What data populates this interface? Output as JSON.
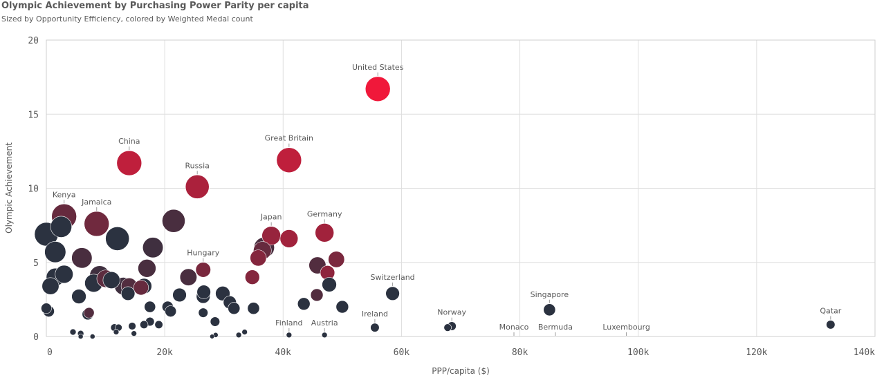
{
  "chart_data": {
    "type": "scatter",
    "title": "Olympic Achievement by Purchasing Power Parity per capita",
    "subtitle": "Sized by Opportunity Efficiency, colored by Weighted Medal count",
    "xlabel": "PPP/capita ($)",
    "ylabel": "Olympic Achievement",
    "xlim": [
      0,
      140000
    ],
    "ylim": [
      0,
      20
    ],
    "x_ticks": [
      0,
      20000,
      40000,
      60000,
      80000,
      100000,
      120000,
      140000
    ],
    "x_tick_labels": [
      "0",
      "20k",
      "40k",
      "60k",
      "80k",
      "100k",
      "120k",
      "140k"
    ],
    "y_ticks": [
      0,
      5,
      10,
      15,
      20
    ],
    "y_tick_labels": [
      "0",
      "5",
      "10",
      "15",
      "20"
    ],
    "grid": true,
    "color_scale": {
      "low": "#2b3240",
      "high": "#f0183a"
    },
    "points": [
      {
        "label": "United States",
        "x": 56000,
        "y": 16.7,
        "size": 1.0,
        "color": 1.0
      },
      {
        "label": "China",
        "x": 14000,
        "y": 11.7,
        "size": 1.0,
        "color": 0.75
      },
      {
        "label": "Great Britain",
        "x": 41000,
        "y": 11.9,
        "size": 1.0,
        "color": 0.75
      },
      {
        "label": "Russia",
        "x": 25500,
        "y": 10.1,
        "size": 0.95,
        "color": 0.65
      },
      {
        "label": "Kenya",
        "x": 3000,
        "y": 8.1,
        "size": 1.0,
        "color": 0.3
      },
      {
        "label": "",
        "x": 2500,
        "y": 7.4,
        "size": 0.85,
        "color": 0.0
      },
      {
        "label": "Jamaica",
        "x": 8500,
        "y": 7.6,
        "size": 1.0,
        "color": 0.35
      },
      {
        "label": "Japan",
        "x": 38000,
        "y": 6.8,
        "size": 0.75,
        "color": 0.55
      },
      {
        "label": "",
        "x": 41000,
        "y": 6.6,
        "size": 0.72,
        "color": 0.6
      },
      {
        "label": "Germany",
        "x": 47000,
        "y": 7.0,
        "size": 0.75,
        "color": 0.6
      },
      {
        "label": "Hungary",
        "x": 26500,
        "y": 4.5,
        "size": 0.6,
        "color": 0.4
      },
      {
        "label": "Switzerland",
        "x": 58500,
        "y": 2.9,
        "size": 0.55,
        "color": 0.0
      },
      {
        "label": "Singapore",
        "x": 85000,
        "y": 1.8,
        "size": 0.48,
        "color": 0.0
      },
      {
        "label": "Ireland",
        "x": 55500,
        "y": 0.6,
        "size": 0.35,
        "color": 0.0
      },
      {
        "label": "Norway",
        "x": 68500,
        "y": 0.7,
        "size": 0.35,
        "color": 0.0
      },
      {
        "label": "Finland",
        "x": 41000,
        "y": 0.1,
        "size": 0.22,
        "color": 0.0
      },
      {
        "label": "Austria",
        "x": 47000,
        "y": 0.1,
        "size": 0.22,
        "color": 0.0
      },
      {
        "label": "Monaco",
        "x": 79000,
        "y": 0.0,
        "size": 0.0,
        "color": 0.0
      },
      {
        "label": "Bermuda",
        "x": 86000,
        "y": 0.0,
        "size": 0.0,
        "color": 0.0
      },
      {
        "label": "Luxembourg",
        "x": 98000,
        "y": 0.0,
        "size": 0.0,
        "color": 0.0
      },
      {
        "label": "Qatar",
        "x": 132500,
        "y": 0.8,
        "size": 0.35,
        "color": 0.0
      },
      {
        "label": "",
        "x": 0,
        "y": 6.9,
        "size": 0.95,
        "color": 0.0
      },
      {
        "label": "",
        "x": 1500,
        "y": 5.7,
        "size": 0.85,
        "color": 0.0
      },
      {
        "label": "",
        "x": 6000,
        "y": 5.3,
        "size": 0.82,
        "color": 0.15
      },
      {
        "label": "",
        "x": 12000,
        "y": 6.6,
        "size": 0.95,
        "color": 0.0
      },
      {
        "label": "",
        "x": 21500,
        "y": 7.8,
        "size": 0.92,
        "color": 0.15
      },
      {
        "label": "",
        "x": 18000,
        "y": 6.0,
        "size": 0.82,
        "color": 0.1
      },
      {
        "label": "",
        "x": 17000,
        "y": 4.6,
        "size": 0.72,
        "color": 0.15
      },
      {
        "label": "",
        "x": 1500,
        "y": 4.0,
        "size": 0.72,
        "color": 0.0
      },
      {
        "label": "",
        "x": 3000,
        "y": 4.2,
        "size": 0.72,
        "color": 0.0
      },
      {
        "label": "",
        "x": 700,
        "y": 3.4,
        "size": 0.68,
        "color": 0.0
      },
      {
        "label": "",
        "x": 9000,
        "y": 4.1,
        "size": 0.8,
        "color": 0.1
      },
      {
        "label": "",
        "x": 8000,
        "y": 3.6,
        "size": 0.72,
        "color": 0.0
      },
      {
        "label": "",
        "x": 10000,
        "y": 3.9,
        "size": 0.7,
        "color": 0.25
      },
      {
        "label": "",
        "x": 11000,
        "y": 3.8,
        "size": 0.68,
        "color": 0.0
      },
      {
        "label": "",
        "x": 13000,
        "y": 3.4,
        "size": 0.7,
        "color": 0.1
      },
      {
        "label": "",
        "x": 14000,
        "y": 3.4,
        "size": 0.65,
        "color": 0.2
      },
      {
        "label": "",
        "x": 16000,
        "y": 3.3,
        "size": 0.6,
        "color": 0.3
      },
      {
        "label": "",
        "x": 16500,
        "y": 3.4,
        "size": 0.62,
        "color": 0.0
      },
      {
        "label": "",
        "x": 13800,
        "y": 2.9,
        "size": 0.55,
        "color": 0.0
      },
      {
        "label": "",
        "x": 5500,
        "y": 2.7,
        "size": 0.58,
        "color": 0.0
      },
      {
        "label": "",
        "x": 7000,
        "y": 1.5,
        "size": 0.45,
        "color": 0.0
      },
      {
        "label": "",
        "x": 7200,
        "y": 1.6,
        "size": 0.42,
        "color": 0.2
      },
      {
        "label": "",
        "x": 0,
        "y": 1.9,
        "size": 0.42,
        "color": 0.0
      },
      {
        "label": "",
        "x": 400,
        "y": 1.7,
        "size": 0.45,
        "color": 0.0
      },
      {
        "label": "",
        "x": 24000,
        "y": 4.0,
        "size": 0.68,
        "color": 0.15
      },
      {
        "label": "",
        "x": 22500,
        "y": 2.8,
        "size": 0.55,
        "color": 0.0
      },
      {
        "label": "",
        "x": 26500,
        "y": 2.7,
        "size": 0.55,
        "color": 0.0
      },
      {
        "label": "",
        "x": 26600,
        "y": 3.0,
        "size": 0.55,
        "color": 0.0
      },
      {
        "label": "",
        "x": 29800,
        "y": 2.9,
        "size": 0.58,
        "color": 0.0
      },
      {
        "label": "",
        "x": 31000,
        "y": 2.3,
        "size": 0.52,
        "color": 0.0
      },
      {
        "label": "",
        "x": 31700,
        "y": 1.9,
        "size": 0.48,
        "color": 0.0
      },
      {
        "label": "",
        "x": 35000,
        "y": 1.9,
        "size": 0.48,
        "color": 0.0
      },
      {
        "label": "",
        "x": 36800,
        "y": 6.0,
        "size": 0.82,
        "color": 0.15
      },
      {
        "label": "",
        "x": 36500,
        "y": 5.8,
        "size": 0.72,
        "color": 0.3
      },
      {
        "label": "",
        "x": 35800,
        "y": 5.3,
        "size": 0.65,
        "color": 0.45
      },
      {
        "label": "",
        "x": 34800,
        "y": 4.0,
        "size": 0.58,
        "color": 0.45
      },
      {
        "label": "",
        "x": 45800,
        "y": 4.8,
        "size": 0.68,
        "color": 0.2
      },
      {
        "label": "",
        "x": 49000,
        "y": 5.2,
        "size": 0.65,
        "color": 0.4
      },
      {
        "label": "",
        "x": 47500,
        "y": 4.3,
        "size": 0.58,
        "color": 0.5
      },
      {
        "label": "",
        "x": 47800,
        "y": 3.5,
        "size": 0.58,
        "color": 0.0
      },
      {
        "label": "",
        "x": 45700,
        "y": 2.8,
        "size": 0.5,
        "color": 0.2
      },
      {
        "label": "",
        "x": 43500,
        "y": 2.2,
        "size": 0.5,
        "color": 0.0
      },
      {
        "label": "",
        "x": 50000,
        "y": 2.0,
        "size": 0.5,
        "color": 0.0
      },
      {
        "label": "",
        "x": 20500,
        "y": 2.0,
        "size": 0.45,
        "color": 0.0
      },
      {
        "label": "",
        "x": 21000,
        "y": 1.7,
        "size": 0.45,
        "color": 0.0
      },
      {
        "label": "",
        "x": 17500,
        "y": 2.0,
        "size": 0.45,
        "color": 0.0
      },
      {
        "label": "",
        "x": 26500,
        "y": 1.6,
        "size": 0.38,
        "color": 0.0
      },
      {
        "label": "",
        "x": 28500,
        "y": 1.0,
        "size": 0.38,
        "color": 0.0
      },
      {
        "label": "",
        "x": 17500,
        "y": 1.0,
        "size": 0.35,
        "color": 0.0
      },
      {
        "label": "",
        "x": 16500,
        "y": 0.8,
        "size": 0.32,
        "color": 0.0
      },
      {
        "label": "",
        "x": 19000,
        "y": 0.8,
        "size": 0.32,
        "color": 0.0
      },
      {
        "label": "",
        "x": 14500,
        "y": 0.7,
        "size": 0.3,
        "color": 0.0
      },
      {
        "label": "",
        "x": 11500,
        "y": 0.6,
        "size": 0.3,
        "color": 0.0
      },
      {
        "label": "",
        "x": 12200,
        "y": 0.6,
        "size": 0.28,
        "color": 0.0
      },
      {
        "label": "",
        "x": 4500,
        "y": 0.3,
        "size": 0.25,
        "color": 0.0
      },
      {
        "label": "",
        "x": 5800,
        "y": 0.2,
        "size": 0.25,
        "color": 0.0
      },
      {
        "label": "",
        "x": 5800,
        "y": 0.0,
        "size": 0.2,
        "color": 0.0
      },
      {
        "label": "",
        "x": 7800,
        "y": 0.0,
        "size": 0.2,
        "color": 0.0
      },
      {
        "label": "",
        "x": 11800,
        "y": 0.3,
        "size": 0.22,
        "color": 0.0
      },
      {
        "label": "",
        "x": 14800,
        "y": 0.2,
        "size": 0.22,
        "color": 0.0
      },
      {
        "label": "",
        "x": 28000,
        "y": 0.0,
        "size": 0.18,
        "color": 0.0
      },
      {
        "label": "",
        "x": 28600,
        "y": 0.1,
        "size": 0.2,
        "color": 0.0
      },
      {
        "label": "",
        "x": 32500,
        "y": 0.1,
        "size": 0.22,
        "color": 0.0
      },
      {
        "label": "",
        "x": 33500,
        "y": 0.3,
        "size": 0.22,
        "color": 0.0
      },
      {
        "label": "",
        "x": 67800,
        "y": 0.6,
        "size": 0.3,
        "color": 0.0
      }
    ]
  }
}
